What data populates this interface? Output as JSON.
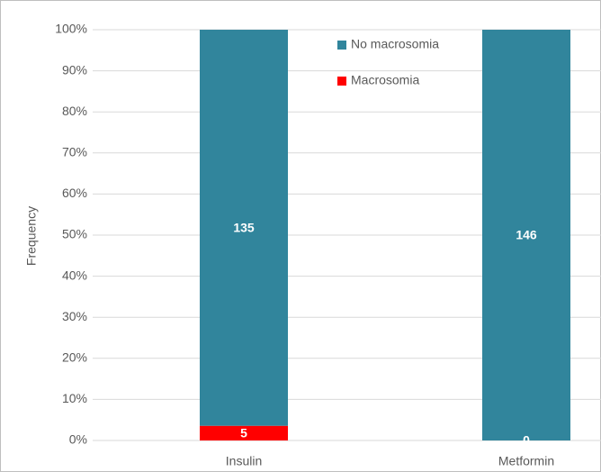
{
  "chart_data": {
    "type": "bar",
    "stacking": "percent",
    "y_label": "Frequency",
    "categories": [
      "Insulin",
      "Metformin"
    ],
    "series": [
      {
        "name": "Macrosomia",
        "color": "#ff0000",
        "values": [
          5,
          0
        ]
      },
      {
        "name": "No macrosomia",
        "color": "#31859c",
        "values": [
          135,
          146
        ]
      }
    ],
    "ylim": [
      0,
      100
    ],
    "yticks": [
      {
        "value": 0,
        "label": "0%"
      },
      {
        "value": 10,
        "label": "10%"
      },
      {
        "value": 20,
        "label": "20%"
      },
      {
        "value": 30,
        "label": "30%"
      },
      {
        "value": 40,
        "label": "40%"
      },
      {
        "value": 50,
        "label": "50%"
      },
      {
        "value": 60,
        "label": "60%"
      },
      {
        "value": 70,
        "label": "70%"
      },
      {
        "value": 80,
        "label": "80%"
      },
      {
        "value": 90,
        "label": "90%"
      },
      {
        "value": 100,
        "label": "100%"
      }
    ],
    "grid": true
  }
}
